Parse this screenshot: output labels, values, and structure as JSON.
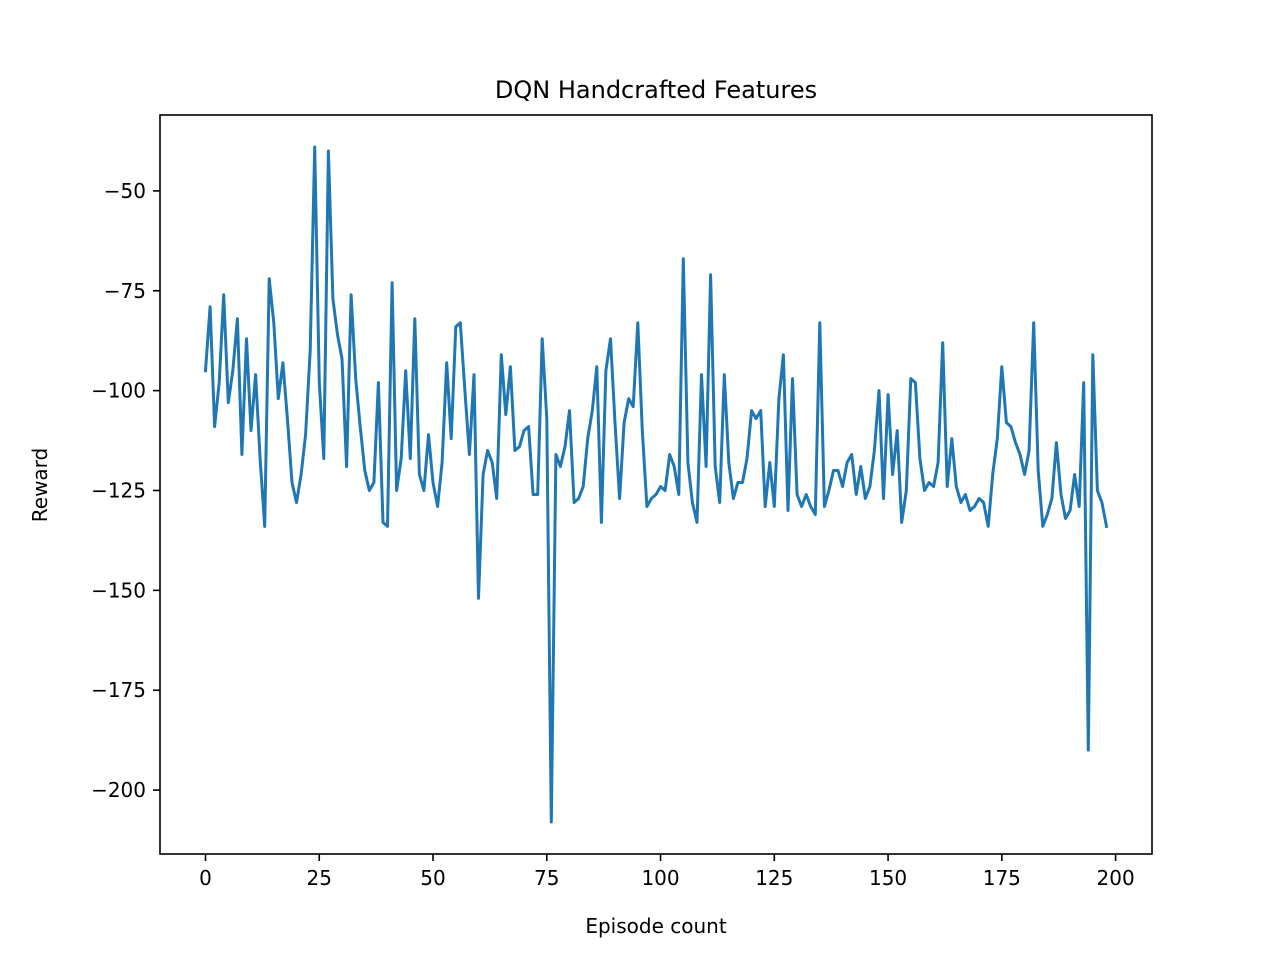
{
  "chart_data": {
    "type": "line",
    "title": "DQN Handcrafted Features",
    "xlabel": "Episode count",
    "ylabel": "Reward",
    "xlim": [
      -10,
      208
    ],
    "ylim": [
      -216,
      -31
    ],
    "x_ticks": [
      0,
      25,
      50,
      75,
      100,
      125,
      150,
      175,
      200
    ],
    "x_tick_labels": [
      "0",
      "25",
      "50",
      "75",
      "100",
      "125",
      "150",
      "175",
      "200"
    ],
    "y_ticks": [
      -50,
      -75,
      -100,
      -125,
      -150,
      -175,
      -200
    ],
    "y_tick_labels": [
      "−50",
      "−75",
      "−100",
      "−125",
      "−150",
      "−175",
      "−200"
    ],
    "grid": false,
    "series": [
      {
        "color": "#1f77b4",
        "x": [
          0,
          1,
          2,
          3,
          4,
          5,
          6,
          7,
          8,
          9,
          10,
          11,
          12,
          13,
          14,
          15,
          16,
          17,
          18,
          19,
          20,
          21,
          22,
          23,
          24,
          25,
          26,
          27,
          28,
          29,
          30,
          31,
          32,
          33,
          34,
          35,
          36,
          37,
          38,
          39,
          40,
          41,
          42,
          43,
          44,
          45,
          46,
          47,
          48,
          49,
          50,
          51,
          52,
          53,
          54,
          55,
          56,
          57,
          58,
          59,
          60,
          61,
          62,
          63,
          64,
          65,
          66,
          67,
          68,
          69,
          70,
          71,
          72,
          73,
          74,
          75,
          76,
          77,
          78,
          79,
          80,
          81,
          82,
          83,
          84,
          85,
          86,
          87,
          88,
          89,
          90,
          91,
          92,
          93,
          94,
          95,
          96,
          97,
          98,
          99,
          100,
          101,
          102,
          103,
          104,
          105,
          106,
          107,
          108,
          109,
          110,
          111,
          112,
          113,
          114,
          115,
          116,
          117,
          118,
          119,
          120,
          121,
          122,
          123,
          124,
          125,
          126,
          127,
          128,
          129,
          130,
          131,
          132,
          133,
          134,
          135,
          136,
          137,
          138,
          139,
          140,
          141,
          142,
          143,
          144,
          145,
          146,
          147,
          148,
          149,
          150,
          151,
          152,
          153,
          154,
          155,
          156,
          157,
          158,
          159,
          160,
          161,
          162,
          163,
          164,
          165,
          166,
          167,
          168,
          169,
          170,
          171,
          172,
          173,
          174,
          175,
          176,
          177,
          178,
          179,
          180,
          181,
          182,
          183,
          184,
          185,
          186,
          187,
          188,
          189,
          190,
          191,
          192,
          193,
          194,
          195,
          196,
          197,
          198
        ],
        "y": [
          -95,
          -79,
          -109,
          -98,
          -76,
          -103,
          -95,
          -82,
          -116,
          -87,
          -110,
          -96,
          -117,
          -134,
          -72,
          -83,
          -102,
          -93,
          -107,
          -123,
          -128,
          -121,
          -111,
          -90,
          -39,
          -98,
          -117,
          -40,
          -77,
          -86,
          -92,
          -119,
          -76,
          -97,
          -109,
          -120,
          -125,
          -123,
          -98,
          -133,
          -134,
          -73,
          -125,
          -117,
          -95,
          -117,
          -82,
          -121,
          -125,
          -111,
          -123,
          -129,
          -118,
          -93,
          -112,
          -84,
          -83,
          -100,
          -116,
          -96,
          -152,
          -121,
          -115,
          -118,
          -127,
          -91,
          -106,
          -94,
          -115,
          -114,
          -110,
          -109,
          -126,
          -126,
          -87,
          -107,
          -208,
          -116,
          -119,
          -114,
          -105,
          -128,
          -127,
          -124,
          -112,
          -105,
          -94,
          -133,
          -95,
          -87,
          -108,
          -127,
          -108,
          -102,
          -104,
          -83,
          -110,
          -129,
          -127,
          -126,
          -124,
          -125,
          -116,
          -119,
          -126,
          -67,
          -118,
          -128,
          -133,
          -96,
          -119,
          -71,
          -119,
          -128,
          -96,
          -118,
          -127,
          -123,
          -123,
          -117,
          -105,
          -107,
          -105,
          -129,
          -118,
          -129,
          -102,
          -91,
          -130,
          -97,
          -126,
          -129,
          -126,
          -129,
          -131,
          -83,
          -129,
          -125,
          -120,
          -120,
          -124,
          -118,
          -116,
          -126,
          -119,
          -127,
          -124,
          -115,
          -100,
          -127,
          -101,
          -121,
          -110,
          -133,
          -125,
          -97,
          -98,
          -117,
          -125,
          -123,
          -124,
          -118,
          -88,
          -124,
          -112,
          -124,
          -128,
          -126,
          -130,
          -129,
          -127,
          -128,
          -134,
          -121,
          -112,
          -94,
          -108,
          -109,
          -113,
          -116,
          -121,
          -115,
          -83,
          -120,
          -134,
          -131,
          -127,
          -113,
          -126,
          -132,
          -130,
          -121,
          -129,
          -98,
          -190,
          -91,
          -125,
          -128,
          -134
        ]
      }
    ]
  }
}
